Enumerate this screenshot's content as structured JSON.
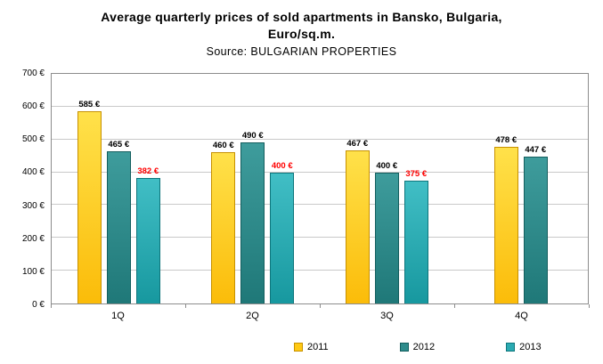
{
  "header": {
    "title_line1": "Average quarterly prices of sold apartments in Bansko, Bulgaria,",
    "title_line2": "Euro/sq.m.",
    "source": "Source: BULGARIAN PROPERTIES"
  },
  "chart_data": {
    "type": "bar",
    "title": "Average quarterly prices of sold apartments in Bansko, Bulgaria, Euro/sq.m.",
    "subtitle": "Source: BULGARIAN PROPERTIES",
    "categories": [
      "1Q",
      "2Q",
      "3Q",
      "4Q"
    ],
    "series": [
      {
        "name": "2011",
        "values": [
          585,
          460,
          467,
          478
        ],
        "color_top": "#FFE14A",
        "color_bottom": "#FBBC09",
        "border": "#C79100",
        "legend_color": "#FFC913",
        "label_color": "#000000"
      },
      {
        "name": "2012",
        "values": [
          465,
          490,
          400,
          447
        ],
        "color_top": "#3E9C9C",
        "color_bottom": "#1F7878",
        "border": "#135E5E",
        "legend_color": "#2E8C8C",
        "label_color": "#000000"
      },
      {
        "name": "2013",
        "values": [
          382,
          400,
          375,
          null
        ],
        "color_top": "#41BEC5",
        "color_bottom": "#17989F",
        "border": "#0E767C",
        "legend_color": "#2BAAB2",
        "label_color": "#FF0000"
      }
    ],
    "ylim": [
      0,
      700
    ],
    "ytick_step": 100,
    "tick_suffix": " €",
    "value_suffix": " €",
    "grid": true,
    "legend_position": "bottom"
  }
}
